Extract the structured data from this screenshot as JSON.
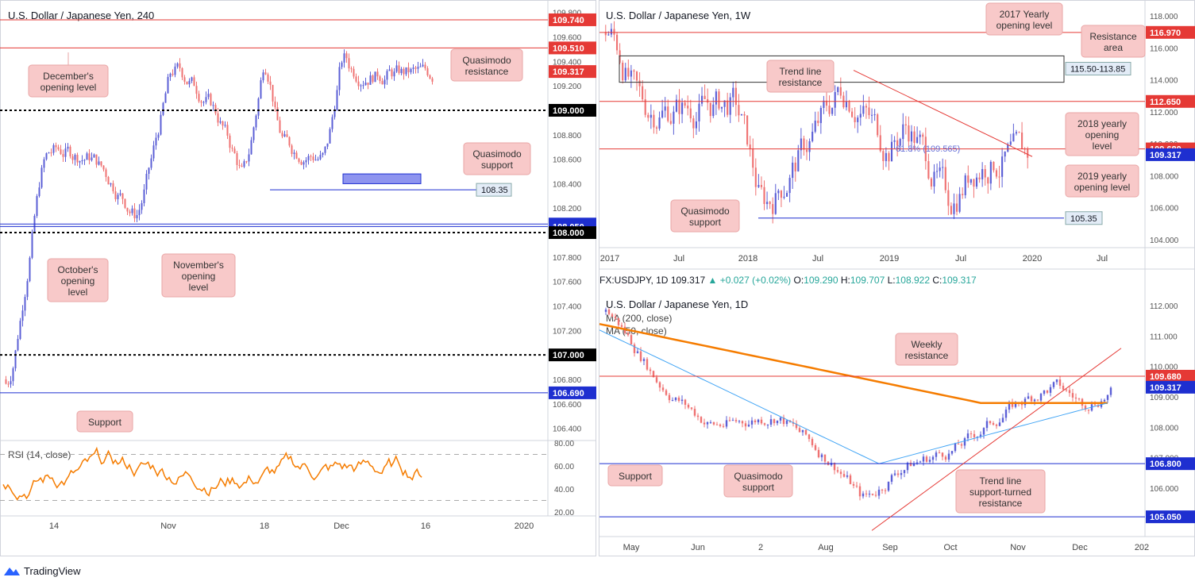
{
  "colors": {
    "red_level": "#e53935",
    "blue_level": "#1e2fd0",
    "bull_candle": "#5b5fd6",
    "bear_candle": "#ef7272",
    "rsi_line": "#f57c00",
    "ma200": "#f57c00",
    "ma50": "#42a5f5",
    "callout_fill": "#f8c9c9",
    "callout_border": "#e9a6a6",
    "zone_fill": "#8e94ef"
  },
  "branding": {
    "logo_text": "TradingView"
  },
  "chart_data": [
    {
      "id": "h4",
      "type": "candlestick",
      "title": "U.S. Dollar / Japanese Yen, 240",
      "ylim": [
        106.3,
        109.85
      ],
      "y_ticks": [
        "109.800",
        "109.600",
        "109.400",
        "109.200",
        "109.000",
        "108.800",
        "108.600",
        "108.400",
        "108.200",
        "108.000",
        "107.800",
        "107.600",
        "107.400",
        "107.200",
        "107.000",
        "106.800",
        "106.600",
        "106.400"
      ],
      "x_ticks": [
        "14",
        "Nov",
        "18",
        "Dec",
        "16",
        "2020"
      ],
      "levels": [
        {
          "value": 109.74,
          "label": "109.740",
          "color": "#e53935",
          "style": "solid"
        },
        {
          "value": 109.51,
          "label": "109.510",
          "color": "#e53935",
          "style": "solid"
        },
        {
          "value": 109.317,
          "label": "109.317",
          "color": "#e53935",
          "style": "price"
        },
        {
          "value": 109.0,
          "label": "109.000",
          "color": "#000000",
          "style": "dotted"
        },
        {
          "value": 108.35,
          "label": "108.35",
          "color": "#1e2fd0",
          "style": "short"
        },
        {
          "value": 108.07,
          "label": "108.070",
          "color": "#1e2fd0",
          "style": "solid"
        },
        {
          "value": 108.05,
          "label": "108.050",
          "color": "#1e2fd0",
          "style": "solid"
        },
        {
          "value": 108.0,
          "label": "108.000",
          "color": "#000000",
          "style": "dotted"
        },
        {
          "value": 107.0,
          "label": "107.000",
          "color": "#000000",
          "style": "dotted"
        },
        {
          "value": 106.69,
          "label": "106.690",
          "color": "#1e2fd0",
          "style": "solid"
        }
      ],
      "annotations": [
        "December's opening level",
        "Quasimodo resistance",
        "Quasimodo support",
        "October's opening level",
        "November's opening level",
        "Support"
      ],
      "rsi": {
        "label": "RSI (14, close)",
        "ylim": [
          20,
          80
        ],
        "y_ticks": [
          "80.00",
          "60.00",
          "40.00",
          "20.00"
        ]
      }
    },
    {
      "id": "w1",
      "type": "candlestick",
      "title": "U.S. Dollar / Japanese Yen, 1W",
      "ylim": [
        103.5,
        118.6
      ],
      "y_ticks": [
        "118.000",
        "116.000",
        "114.000",
        "112.000",
        "110.000",
        "108.000",
        "106.000",
        "104.000"
      ],
      "x_ticks": [
        "2017",
        "Jul",
        "2018",
        "Jul",
        "2019",
        "Jul",
        "2020",
        "Jul"
      ],
      "levels": [
        {
          "value": 116.97,
          "label": "116.970",
          "color": "#e53935",
          "style": "solid"
        },
        {
          "value": 112.65,
          "label": "112.650",
          "color": "#e53935",
          "style": "solid"
        },
        {
          "value": 109.68,
          "label": "109.680",
          "color": "#e53935",
          "style": "solid"
        },
        {
          "value": 109.317,
          "label": "109.317",
          "color": "#1e2fd0",
          "style": "price"
        },
        {
          "value": 105.35,
          "label": "105.35",
          "color": "#1e2fd0",
          "style": "short"
        }
      ],
      "zone": {
        "label": "115.50-113.85",
        "top": 115.5,
        "bottom": 113.85
      },
      "fib_label": "61.8% (109.565)",
      "annotations": [
        "2017 Yearly opening level",
        "Resistance area",
        "Trend line resistance",
        "2018 yearly opening level",
        "2019 yearly opening level",
        "Quasimodo support"
      ]
    },
    {
      "id": "d1",
      "type": "candlestick",
      "title": "U.S. Dollar / Japanese Yen, 1D",
      "symbol_line": {
        "symbol": "FX:USDJPY, 1D",
        "last": "109.317",
        "change": "+0.027 (+0.02%)",
        "open_label": "O:",
        "open": "109.290",
        "high_label": "H:",
        "high": "109.707",
        "low_label": "L:",
        "low": "108.922",
        "close_label": "C:",
        "close": "109.317"
      },
      "ma_labels": [
        "MA (200, close)",
        "MA (50, close)"
      ],
      "ylim": [
        104.4,
        112.45
      ],
      "y_ticks": [
        "112.000",
        "111.000",
        "110.000",
        "109.000",
        "108.000",
        "107.000",
        "106.000",
        "105.000"
      ],
      "x_ticks": [
        "May",
        "Jun",
        "2",
        "Aug",
        "Sep",
        "Oct",
        "Nov",
        "Dec",
        "202"
      ],
      "levels": [
        {
          "value": 109.68,
          "label": "109.680",
          "color": "#e53935",
          "style": "solid"
        },
        {
          "value": 109.317,
          "label": "109.317",
          "color": "#1e2fd0",
          "style": "price"
        },
        {
          "value": 106.8,
          "label": "106.800",
          "color": "#1e2fd0",
          "style": "solid"
        },
        {
          "value": 105.05,
          "label": "105.050",
          "color": "#1e2fd0",
          "style": "solid"
        }
      ],
      "annotations": [
        "Weekly resistance",
        "Support",
        "Quasimodo support",
        "Trend line support-turned resistance"
      ]
    }
  ]
}
